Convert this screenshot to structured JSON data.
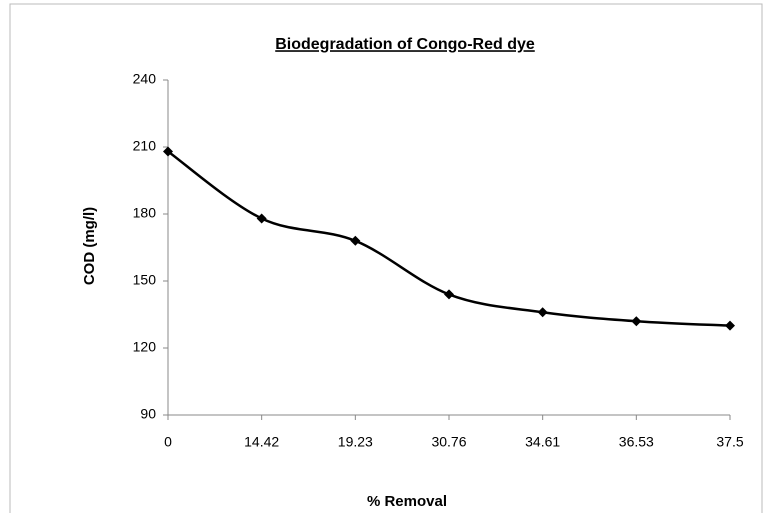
{
  "chart_data": {
    "type": "line",
    "title": "Biodegradation of Congo-Red dye",
    "x_label": "% Removal",
    "y_label": "COD (mg/l)",
    "categories": [
      "0",
      "14.42",
      "19.23",
      "30.76",
      "34.61",
      "36.53",
      "37.5"
    ],
    "series": [
      {
        "name": "COD",
        "color": "#000000",
        "values": [
          208,
          178,
          168,
          144,
          136,
          132,
          130
        ]
      }
    ],
    "ylim": [
      90,
      240
    ],
    "yticks": [
      90,
      120,
      150,
      180,
      210,
      240
    ],
    "smooth": true,
    "grid": false
  }
}
